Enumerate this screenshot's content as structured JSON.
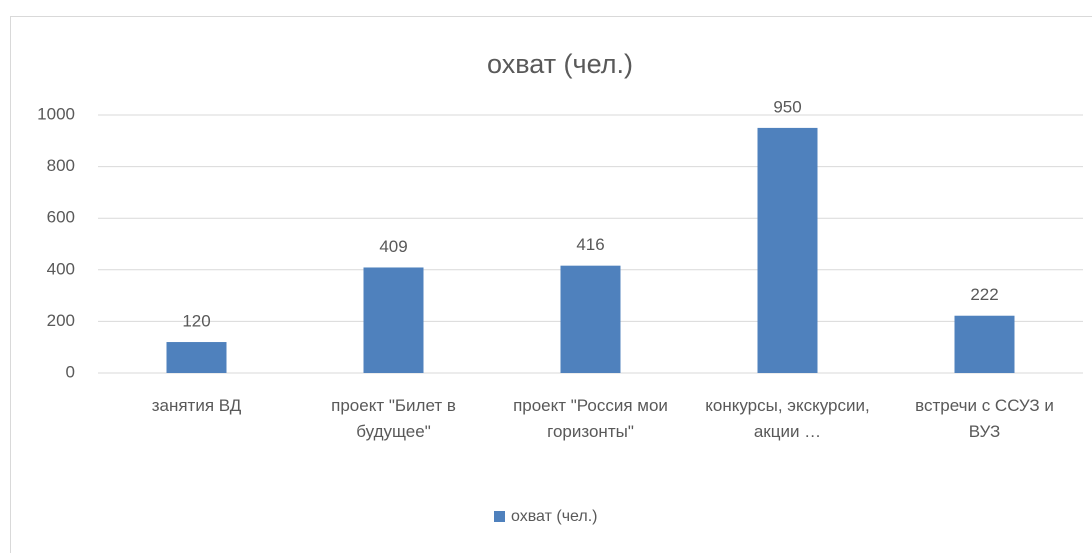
{
  "chart_data": {
    "type": "bar",
    "title": "охват (чел.)",
    "categories": [
      "занятия ВД",
      "проект \"Билет в будущее\"",
      "проект \"Россия мои горизонты\"",
      "конкурсы, экскурсии, акции …",
      "встречи с ССУЗ и ВУЗ"
    ],
    "series": [
      {
        "name": "охват (чел.)",
        "color": "#4f81bd",
        "values": [
          120,
          409,
          416,
          950,
          222
        ]
      }
    ],
    "ylim": [
      0,
      1000
    ],
    "yticks": [
      0,
      200,
      400,
      600,
      800,
      1000
    ],
    "grid": true,
    "legend": "bottom"
  }
}
